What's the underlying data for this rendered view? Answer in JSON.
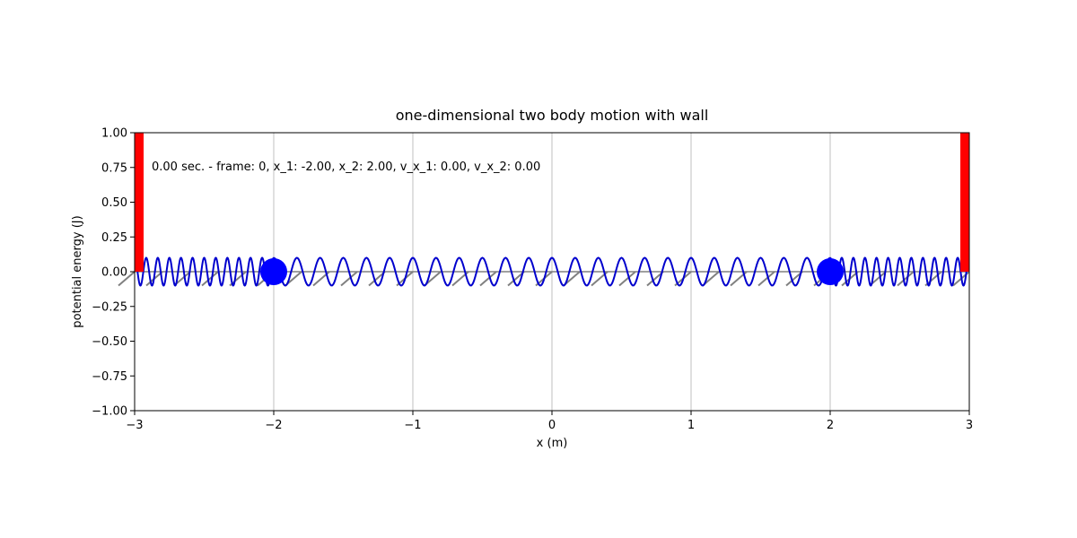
{
  "chart_data": {
    "type": "line",
    "title": "one-dimensional two body motion with wall",
    "xlabel": "x (m)",
    "ylabel": "potential energy (J)",
    "xlim": [
      -3,
      3
    ],
    "ylim": [
      -1,
      1
    ],
    "grid": "vertical",
    "x_ticks": [
      -3,
      -2,
      -1,
      0,
      1,
      2,
      3
    ],
    "x_tick_labels": [
      "−3",
      "−2",
      "−1",
      "0",
      "1",
      "2",
      "3"
    ],
    "y_ticks": [
      1.0,
      0.75,
      0.5,
      0.25,
      0.0,
      -0.25,
      -0.5,
      -0.75,
      -1.0
    ],
    "y_tick_labels": [
      "1.00",
      "0.75",
      "0.50",
      "0.25",
      "0.00",
      "−0.25",
      "−0.50",
      "−0.75",
      "−1.00"
    ],
    "annotation": "0.00 sec. - frame: 0, x_1: -2.00, x_2: 2.00, v_x_1: 0.00, v_x_2: 0.00",
    "walls": [
      {
        "x": -3,
        "y_range": [
          0,
          1
        ],
        "color": "#ff0000"
      },
      {
        "x": 3,
        "y_range": [
          0,
          1
        ],
        "color": "#ff0000"
      }
    ],
    "bodies": [
      {
        "x": -2.0,
        "y": 0.0,
        "color": "#0000ff"
      },
      {
        "x": 2.0,
        "y": 0.0,
        "color": "#0000ff"
      }
    ],
    "springs": [
      {
        "from": -3,
        "to": -2,
        "amplitude": 0.1,
        "coils": 12,
        "color": "#0000cd"
      },
      {
        "from": -2,
        "to": 2,
        "amplitude": 0.1,
        "coils": 24,
        "color": "#0000cd"
      },
      {
        "from": 2,
        "to": 3,
        "amplitude": 0.1,
        "coils": 12,
        "color": "#0000cd"
      }
    ],
    "floor": {
      "y": 0.0,
      "hatch_depth": -0.1,
      "hatch_spacing": 0.2,
      "color": "#808080"
    },
    "colors": {
      "wall": "#ff0000",
      "body": "#0000ff",
      "spring": "#0000cd",
      "floor": "#808080",
      "grid": "#b0b0b0"
    }
  }
}
